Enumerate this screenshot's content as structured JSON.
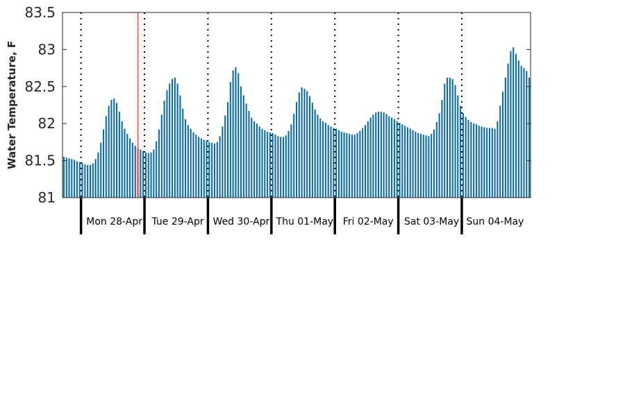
{
  "chart_data": {
    "type": "bar",
    "title": "",
    "xlabel": "",
    "ylabel": "Water Temperature, F",
    "ylim": [
      81,
      83.5
    ],
    "yticks": [
      81,
      81.5,
      82,
      82.5,
      83,
      83.5
    ],
    "ytick_labels": [
      "81",
      "81.5",
      "82",
      "82.5",
      "83",
      "83.5"
    ],
    "samples_per_day": 24,
    "start_offset_hours": -7,
    "series": [
      {
        "values": [
          81.55,
          81.54,
          81.53,
          81.52,
          81.51,
          81.49,
          81.48,
          81.47,
          81.45,
          81.44,
          81.44,
          81.46,
          81.52,
          81.61,
          81.74,
          81.92,
          82.1,
          82.24,
          82.32,
          82.34,
          82.28,
          82.16,
          82.03,
          81.93,
          81.86,
          81.8,
          81.74,
          81.7,
          81.67,
          81.65,
          81.63,
          81.61,
          81.6,
          81.61,
          81.65,
          81.76,
          81.92,
          82.12,
          82.31,
          82.45,
          82.54,
          82.6,
          82.62,
          82.54,
          82.38,
          82.2,
          82.06,
          81.98,
          81.93,
          81.88,
          81.85,
          81.82,
          81.8,
          81.78,
          81.77,
          81.75,
          81.74,
          81.73,
          81.75,
          81.83,
          81.96,
          82.11,
          82.29,
          82.56,
          82.72,
          82.76,
          82.68,
          82.5,
          82.38,
          82.27,
          82.17,
          82.08,
          82.03,
          82.0,
          81.96,
          81.93,
          81.91,
          81.89,
          81.88,
          81.87,
          81.85,
          81.83,
          81.82,
          81.82,
          81.84,
          81.9,
          81.99,
          82.13,
          82.29,
          82.42,
          82.49,
          82.47,
          82.44,
          82.37,
          82.28,
          82.19,
          82.12,
          82.07,
          82.03,
          82.01,
          81.98,
          81.96,
          81.94,
          81.93,
          81.91,
          81.89,
          81.88,
          81.87,
          81.86,
          81.85,
          81.85,
          81.87,
          81.9,
          81.94,
          81.98,
          82.03,
          82.08,
          82.12,
          82.15,
          82.16,
          82.16,
          82.15,
          82.13,
          82.1,
          82.08,
          82.06,
          82.03,
          82.01,
          81.99,
          81.97,
          81.95,
          81.93,
          81.91,
          81.89,
          81.87,
          81.86,
          81.85,
          81.84,
          81.83,
          81.86,
          81.92,
          82.02,
          82.14,
          82.32,
          82.54,
          82.62,
          82.62,
          82.6,
          82.52,
          82.38,
          82.24,
          82.14,
          82.09,
          82.05,
          82.02,
          82.0,
          81.99,
          81.97,
          81.96,
          81.95,
          81.94,
          81.94,
          81.94,
          81.93,
          82.03,
          82.24,
          82.43,
          82.62,
          82.81,
          82.98,
          83.03,
          82.94,
          82.85,
          82.78,
          82.75,
          82.71,
          82.62
        ]
      }
    ],
    "x_day_labels": [
      "Mon 28-Apr",
      "Tue 29-Apr",
      "Wed 30-Apr",
      "Thu 01-May",
      "Fri 02-May",
      "Sat 03-May",
      "Sun 04-May"
    ],
    "current_time_marker_hour": 21.5,
    "grid": "dotted vertical lines at day boundaries",
    "colors": {
      "bar": "#0b6ba8",
      "marker": "#ff3b3b",
      "axis": "#262626",
      "day_divider": "#000000"
    }
  }
}
